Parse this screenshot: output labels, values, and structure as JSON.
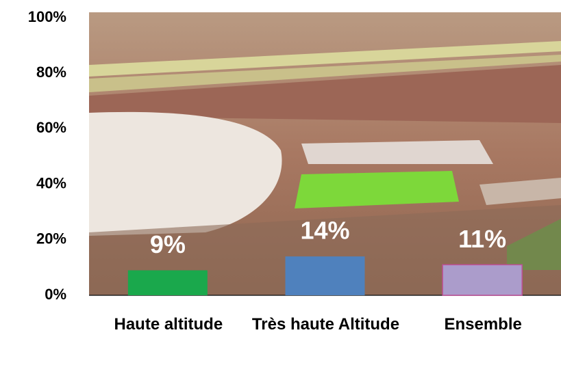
{
  "chart_data": {
    "type": "bar",
    "categories": [
      "Haute altitude",
      "Très haute Altitude",
      "Ensemble"
    ],
    "values": [
      9,
      14,
      11
    ],
    "value_labels": [
      "9%",
      "14%",
      "11%"
    ],
    "colors": [
      "#1aa84c",
      "#4f81bd",
      "#ab9ccb"
    ],
    "ylim": [
      0,
      100
    ],
    "yticks": [
      {
        "value": 0,
        "label": "0%"
      },
      {
        "value": 20,
        "label": "20%"
      },
      {
        "value": 40,
        "label": "40%"
      },
      {
        "value": 60,
        "label": "60%"
      },
      {
        "value": 80,
        "label": "80%"
      },
      {
        "value": 100,
        "label": "100%"
      }
    ]
  }
}
